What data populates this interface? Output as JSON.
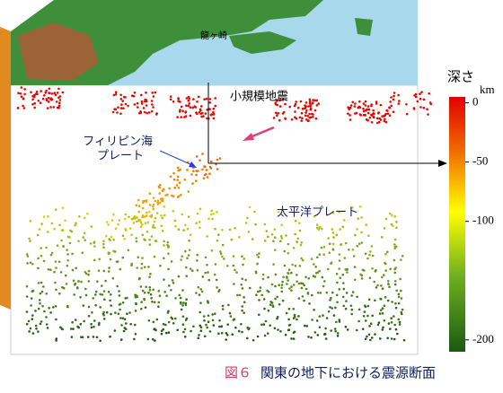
{
  "labels": {
    "place": "龍ヶ崎",
    "small_quakes": "小規模地震",
    "philippine_plate": [
      "フィリピン海",
      "プレート"
    ],
    "pacific_plate": "太平洋プレート"
  },
  "colorbar": {
    "title": "深さ",
    "unit": "km",
    "ylim": [
      5,
      -210
    ],
    "yticks": [
      0,
      -50,
      -100,
      -200
    ]
  },
  "caption": {
    "figure": "図６",
    "text": "関東の地下における震源断面"
  }
}
